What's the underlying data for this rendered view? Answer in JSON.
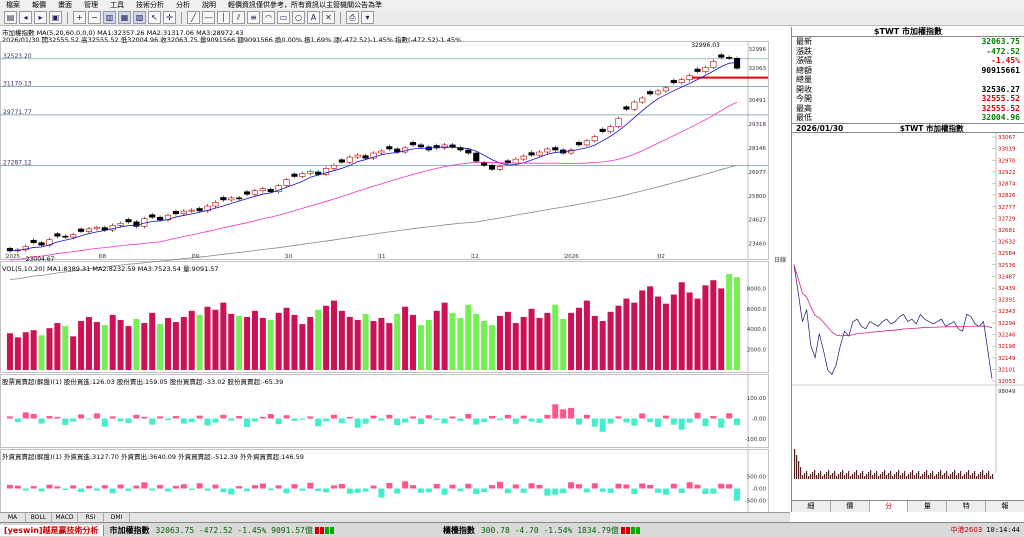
{
  "menu": [
    "檔案",
    "報價",
    "畫面",
    "管理",
    "工具",
    "技術分析",
    "分析",
    "說明",
    "輕價資訊僅供參考，所有資訊以主管機關公告為準"
  ],
  "main_chart": {
    "header_line1": "市加權指數 MA(5,20,60,0,0,0) MA1:32357.26 MA2:31317.06 MA3:28972.43",
    "header_line2": "2026/01/30 開32555.52 高32555.52 低32004.96 收32063.75 量9091566 額9091566 換0.00% 振1.69% 漲(-472.52)-1.45% 指數(-472.52)-1.45%",
    "price_levels": [
      "32523.20",
      "31170.13",
      "29771.77",
      "27287.12"
    ],
    "right_axis": [
      "32996",
      "32063",
      "30491",
      "29318",
      "28146",
      "26977",
      "25800",
      "24627",
      "23460"
    ],
    "high_label": "32996.03",
    "low_label": "23004.67",
    "months": [
      "2025",
      "08",
      "09",
      "10",
      "11",
      "12",
      "2026",
      "02"
    ],
    "axis_tag": "日線",
    "closes": [
      23100,
      23150,
      23320,
      23500,
      23380,
      23650,
      23820,
      23780,
      23900,
      24050,
      24180,
      24250,
      24120,
      24350,
      24450,
      24520,
      24300,
      24680,
      24750,
      24620,
      24850,
      24920,
      25050,
      25100,
      25060,
      25300,
      25480,
      25600,
      25700,
      25650,
      25880,
      26050,
      26150,
      26000,
      26300,
      26600,
      26750,
      26900,
      27000,
      26850,
      27150,
      27300,
      27450,
      27700,
      27800,
      27650,
      27900,
      28000,
      28100,
      27950,
      28150,
      28300,
      28200,
      28050,
      28150,
      28300,
      28200,
      28050,
      27900,
      27500,
      27300,
      27100,
      27250,
      27400,
      27600,
      27750,
      27800,
      27950,
      28100,
      28050,
      27900,
      28050,
      28300,
      28500,
      28700,
      28950,
      29200,
      29600,
      30050,
      30400,
      30600,
      30800,
      30950,
      31100,
      31350,
      31500,
      31700,
      31900,
      32100,
      32400,
      32600,
      32550,
      32063.75
    ]
  },
  "volume_chart": {
    "header": "VOL(5,10,20) MA1:8389.31 MA2:8232.59 MA3:7523.54 量:9091.57",
    "ticks": [
      "8000.0",
      "6000.0",
      "4000.0",
      "2000.0"
    ],
    "values": [
      3600,
      3200,
      3700,
      3900,
      3400,
      4100,
      4600,
      4300,
      3300,
      4800,
      5200,
      4700,
      4400,
      5400,
      4900,
      4300,
      5000,
      4600,
      5600,
      4500,
      5100,
      4700,
      5200,
      5800,
      5400,
      6200,
      5900,
      6600,
      5500,
      5300,
      5200,
      5800,
      5100,
      4900,
      5600,
      6100,
      5400,
      4500,
      5200,
      5900,
      6300,
      6800,
      5800,
      5200,
      4900,
      5500,
      4800,
      5100,
      4600,
      5500,
      6200,
      5400,
      4400,
      4900,
      5800,
      6600,
      5600,
      5100,
      6400,
      5500,
      4800,
      4400,
      5300,
      5700,
      4600,
      5200,
      6000,
      5100,
      5600,
      6400,
      5000,
      5600,
      6100,
      6800,
      5300,
      4800,
      5700,
      6300,
      7000,
      6600,
      7800,
      8200,
      7200,
      6500,
      7400,
      8600,
      7600,
      7000,
      8300,
      8800,
      8000,
      9400,
      9091
    ]
  },
  "dealer_chart": {
    "header": "股票買賣超(解盤)(1) 股份買進:126.03 股份賣出:159.05 股份買賣超:-33.02 股份買賣超:-65.39",
    "ticks": [
      "100.00",
      "-0.00",
      "-100.00"
    ],
    "values": [
      10,
      -18,
      30,
      22,
      -25,
      12,
      8,
      -32,
      -15,
      20,
      -5,
      25,
      -40,
      10,
      -14,
      -22,
      18,
      8,
      -30,
      10,
      -8,
      12,
      -25,
      -18,
      14,
      -35,
      -20,
      18,
      -10,
      12,
      -42,
      -15,
      8,
      22,
      -28,
      16,
      -12,
      -6,
      10,
      -38,
      -14,
      18,
      -22,
      8,
      -45,
      -26,
      14,
      -10,
      18,
      -32,
      -20,
      10,
      -28,
      16,
      -8,
      -24,
      10,
      -12,
      22,
      -30,
      -18,
      12,
      -8,
      18,
      -26,
      14,
      -15,
      -22,
      18,
      70,
      45,
      52,
      -30,
      18,
      -40,
      -65,
      -25,
      10,
      -20,
      -35,
      25,
      -18,
      -42,
      14,
      -30,
      -55,
      -20,
      28,
      -38,
      12,
      -45,
      26,
      -33
    ]
  },
  "foreign_chart": {
    "header": "外資買賣超(解盤)(1) 外資買進:3127.70 外資賣出:3640.09 外資買賣超:-512.39 外外資買賣超:146.59",
    "ticks": [
      "500.00",
      "-0.00",
      "-500.00"
    ],
    "values": [
      150,
      120,
      -80,
      100,
      -120,
      160,
      90,
      -60,
      130,
      -150,
      110,
      -90,
      140,
      -200,
      170,
      -100,
      120,
      260,
      -80,
      150,
      -130,
      110,
      180,
      -60,
      220,
      -90,
      160,
      -150,
      -250,
      100,
      -120,
      140,
      210,
      -70,
      130,
      -200,
      180,
      -90,
      240,
      -110,
      -160,
      130,
      190,
      -220,
      -180,
      -130,
      120,
      -380,
      230,
      -210,
      300,
      140,
      -180,
      -160,
      190,
      -260,
      160,
      -120,
      200,
      -230,
      -150,
      140,
      280,
      -200,
      170,
      -180,
      220,
      150,
      -300,
      -260,
      -200,
      260,
      180,
      -160,
      220,
      -140,
      -190,
      200,
      170,
      -230,
      210,
      150,
      -180,
      -260,
      200,
      -190,
      260,
      160,
      -230,
      -220,
      200,
      180,
      -512
    ]
  },
  "right_panel": {
    "title": "$TWT 市加權指數",
    "rows": [
      {
        "label": "最新",
        "value": "32063.75",
        "cls": "up"
      },
      {
        "label": "漲跌",
        "value": "-472.52",
        "cls": "up"
      },
      {
        "label": "漲幅",
        "value": "-1.45%",
        "cls": "dn"
      },
      {
        "label": "總額",
        "value": "90915661",
        "cls": ""
      },
      {
        "label": "總量",
        "value": "",
        "cls": ""
      },
      {
        "label": "開收",
        "value": "32536.27",
        "cls": ""
      },
      {
        "label": "今開",
        "value": "32555.52",
        "cls": "dn"
      },
      {
        "label": "最高",
        "value": "32555.52",
        "cls": "dn"
      },
      {
        "label": "最低",
        "value": "32004.96",
        "cls": "up"
      }
    ],
    "intraday_date": "2026/01/30",
    "intraday_title": "$TWT 市加權指數",
    "intraday_axis": [
      "33067",
      "33019",
      "32970",
      "32922",
      "32874",
      "32826",
      "32777",
      "32729",
      "32681",
      "32632",
      "32584",
      "32536",
      "32487",
      "32439",
      "32391",
      "32343",
      "32294",
      "32246",
      "32198",
      "32149",
      "32101",
      "32053"
    ],
    "vol_label": "98049",
    "tabs": [
      "細",
      "價",
      "分",
      "量",
      "特",
      "報"
    ],
    "active_tab": 2
  },
  "indicator_tabs": [
    "MA",
    "BOLL",
    "MACD",
    "RSI",
    "DMI"
  ],
  "status": {
    "brand": "[yeswin]越是赢技術分析",
    "idx1_name": "市加權指數",
    "idx1_vals": "32063.75 -472.52 -1.45% 9091.57億",
    "idx2_name": "櫃檯指數",
    "idx2_vals": "300.78 -4.70 -1.54% 1834.79億",
    "right_label": "中港2603",
    "time": "10:14:44"
  },
  "colors": {
    "up_bar": "#cc1155",
    "down_bar": "#77ee55",
    "pos_bar": "#ff5588",
    "neg_bar": "#44eecc",
    "ma5": "#1111cc",
    "ma20": "#ee33cc",
    "ma60": "#888888"
  }
}
